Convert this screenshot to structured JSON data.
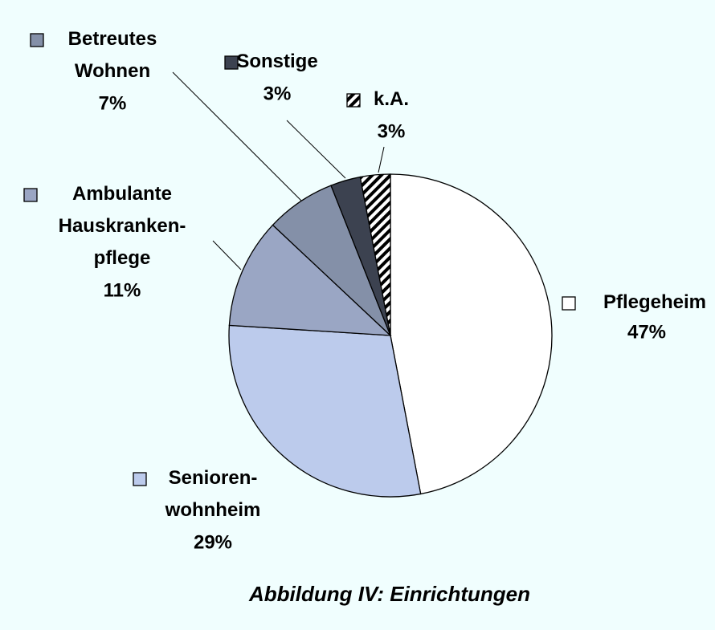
{
  "chart_data": {
    "type": "pie",
    "title": "Abbildung IV: Einrichtungen",
    "categories": [
      "Pflegeheim",
      "Senioren-\nwohnheim",
      "Ambulante\nHauskranken-\npflege",
      "Betreutes\nWohnen",
      "Sonstige",
      "k.A."
    ],
    "values": [
      47,
      29,
      11,
      7,
      3,
      3
    ],
    "value_labels": [
      "47%",
      "29%",
      "11%",
      "7%",
      "3%",
      "3%"
    ],
    "colors": [
      "#ffffff",
      "#bccbec",
      "#9aa6c4",
      "#8490a8",
      "#3c4250",
      "#000000"
    ],
    "patterns": [
      "solid",
      "solid",
      "solid",
      "solid",
      "solid",
      "hatch"
    ],
    "start_angle": 0,
    "direction": "clockwise"
  }
}
